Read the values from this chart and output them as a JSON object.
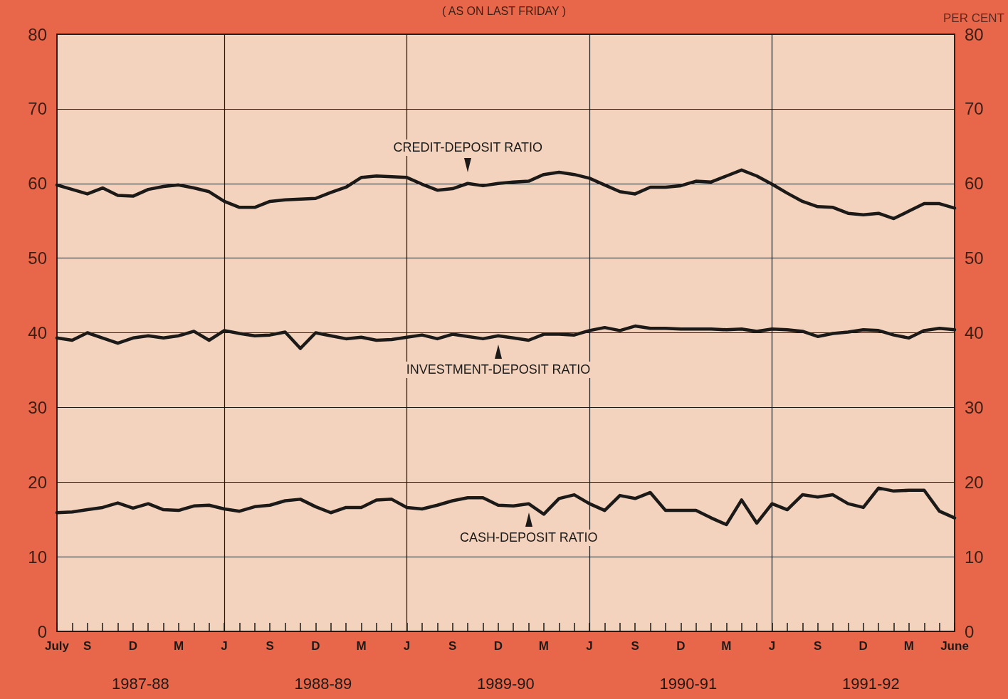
{
  "chart_data": {
    "type": "line",
    "subtitle": "( AS ON LAST FRIDAY )",
    "y2label": "PER CENT",
    "categories": [
      "July",
      null,
      "S",
      null,
      null,
      "D",
      null,
      null,
      "M",
      null,
      null,
      "J",
      null,
      null,
      "S",
      null,
      null,
      "D",
      null,
      null,
      "M",
      null,
      null,
      "J",
      null,
      null,
      "S",
      null,
      null,
      "D",
      null,
      null,
      "M",
      null,
      null,
      "J",
      null,
      null,
      "S",
      null,
      null,
      "D",
      null,
      null,
      "M",
      null,
      null,
      "J",
      null,
      null,
      "S",
      null,
      null,
      "D",
      null,
      null,
      "M",
      null,
      null,
      "June"
    ],
    "series": [
      {
        "name": "CREDIT-DEPOSIT RATIO",
        "color": "#1c1a18",
        "values": [
          59.8,
          59.2,
          58.6,
          59.4,
          58.4,
          58.3,
          59.2,
          59.6,
          59.8,
          59.4,
          58.9,
          57.6,
          56.8,
          56.8,
          57.6,
          57.8,
          57.9,
          58.0,
          58.8,
          59.5,
          60.8,
          61.0,
          60.9,
          60.8,
          59.9,
          59.1,
          59.3,
          60.0,
          59.7,
          60.0,
          60.2,
          60.3,
          61.2,
          61.5,
          61.2,
          60.7,
          59.8,
          58.9,
          58.6,
          59.5,
          59.5,
          59.7,
          60.3,
          60.2,
          61.0,
          61.8,
          61.0,
          59.9,
          58.7,
          57.6,
          56.9,
          56.8,
          56.0,
          55.8,
          56.0,
          55.3,
          56.3,
          57.3,
          57.3,
          56.7
        ]
      },
      {
        "name": "INVESTMENT-DEPOSIT RATIO",
        "color": "#1c1a18",
        "values": [
          39.3,
          39.0,
          40.0,
          39.3,
          38.6,
          39.3,
          39.6,
          39.3,
          39.6,
          40.2,
          39.0,
          40.3,
          39.9,
          39.6,
          39.7,
          40.1,
          37.9,
          40.0,
          39.6,
          39.2,
          39.4,
          39.0,
          39.1,
          39.4,
          39.7,
          39.2,
          39.8,
          39.5,
          39.2,
          39.6,
          39.3,
          39.0,
          39.8,
          39.8,
          39.7,
          40.3,
          40.7,
          40.3,
          40.9,
          40.6,
          40.6,
          40.5,
          40.5,
          40.5,
          40.4,
          40.5,
          40.2,
          40.5,
          40.4,
          40.2,
          39.5,
          39.9,
          40.1,
          40.4,
          40.3,
          39.7,
          39.3,
          40.3,
          40.6,
          40.4
        ]
      },
      {
        "name": "CASH-DEPOSIT RATIO",
        "color": "#1c1a18",
        "values": [
          15.9,
          16.0,
          16.3,
          16.6,
          17.2,
          16.5,
          17.1,
          16.3,
          16.2,
          16.8,
          16.9,
          16.4,
          16.1,
          16.7,
          16.9,
          17.5,
          17.7,
          16.7,
          15.9,
          16.6,
          16.6,
          17.6,
          17.7,
          16.6,
          16.4,
          16.9,
          17.5,
          17.9,
          17.9,
          16.9,
          16.8,
          17.1,
          15.7,
          17.8,
          18.3,
          17.1,
          16.2,
          18.2,
          17.8,
          18.6,
          16.2,
          16.2,
          16.2,
          15.2,
          14.3,
          17.6,
          14.5,
          17.1,
          16.3,
          18.3,
          18.0,
          18.3,
          17.1,
          16.6,
          19.2,
          18.8,
          18.9,
          18.9,
          16.1,
          15.2
        ]
      }
    ],
    "ylim": [
      0,
      80
    ],
    "yticks": [
      0,
      10,
      20,
      30,
      40,
      50,
      60,
      70,
      80
    ],
    "y2lim": [
      0,
      80
    ],
    "y2ticks": [
      0,
      10,
      20,
      30,
      40,
      50,
      60,
      70,
      80
    ],
    "grid": true,
    "legend": "center",
    "marker": "none",
    "line_style": "solid",
    "annotations": [
      "1987-88",
      "1988-89",
      "1989-90",
      "1990-91",
      "1991-92"
    ]
  }
}
